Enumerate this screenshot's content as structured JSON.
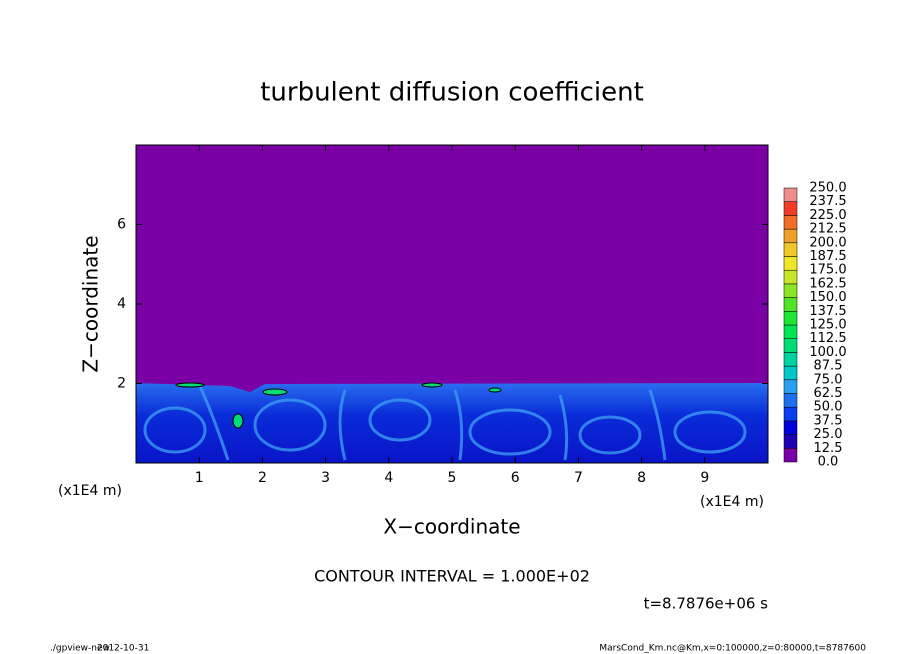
{
  "chart_data": {
    "type": "contour",
    "title": "turbulent diffusion coefficient",
    "xlabel": "X−coordinate",
    "ylabel": "Z−coordinate",
    "x_unit": "(x1E4 m)",
    "xlim": [
      0,
      10
    ],
    "xticks": [
      1,
      2,
      3,
      4,
      5,
      6,
      7,
      8,
      9
    ],
    "ylim": [
      0,
      8
    ],
    "yticks": [
      2,
      4,
      6
    ],
    "levels": [
      {
        "value": 0,
        "label": "0.0"
      },
      12.5,
      {
        "value": 25,
        "label": "25.0"
      },
      37.5,
      {
        "value": 50,
        "label": "50.0"
      },
      62.5,
      {
        "value": 75,
        "label": "75.0"
      },
      87.5,
      {
        "value": 100,
        "label": "100.0"
      },
      112.5,
      {
        "value": 125,
        "label": "125.0"
      },
      137.5,
      {
        "value": 150,
        "label": "150.0"
      },
      162.5,
      {
        "value": 175,
        "label": "175.0"
      },
      187.5,
      {
        "value": 200,
        "label": "200.0"
      },
      212.5,
      {
        "value": 225,
        "label": "225.0"
      },
      237.5,
      {
        "value": 250,
        "label": "250.0"
      }
    ],
    "colors": [
      "#7a00a6",
      "#1e00b4",
      "#0000dc",
      "#0a3cf0",
      "#1e6ef0",
      "#28a0f0",
      "#00c8c8",
      "#00d2a0",
      "#00dc78",
      "#00e650",
      "#1ee632",
      "#50e628",
      "#8ce628",
      "#c8e628",
      "#f0e628",
      "#f0c828",
      "#f0a028",
      "#f06e28",
      "#f03c28",
      "#f08c8c"
    ],
    "annotation": "CONTOUR INTERVAL = 1.000E+02",
    "time_label": "t=8.7876e+06 s"
  },
  "footer": {
    "program": "./gpview-new",
    "date": "2012-10-31",
    "source": "MarsCond_Km.nc@Km,x=0:100000,z=0:80000,t=8787600"
  }
}
